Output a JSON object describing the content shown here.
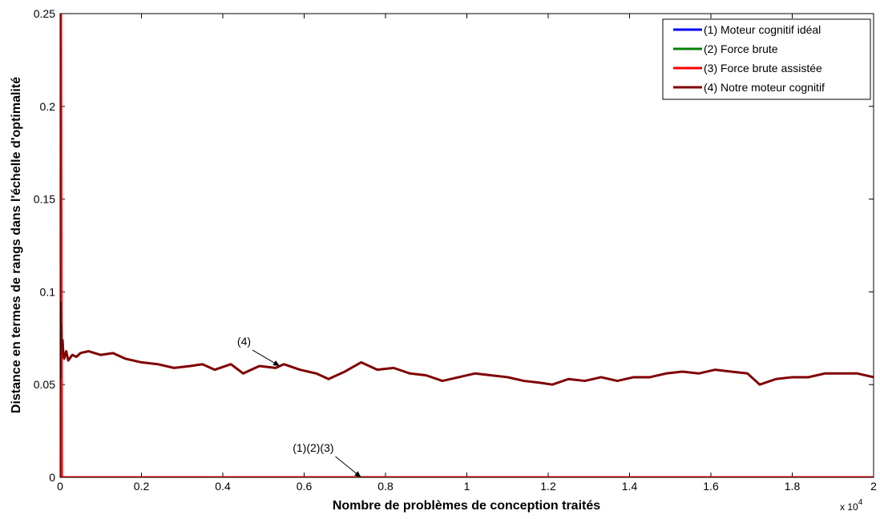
{
  "chart_data": {
    "type": "line",
    "title": "",
    "xlabel": "Nombre de problèmes de conception traités",
    "ylabel": "Distance en termes de rangs dans l'échelle d'optimalité",
    "x_multiplier_label": "x 10",
    "x_multiplier_exponent": "4",
    "xlim": [
      0,
      20000
    ],
    "ylim": [
      0,
      0.25
    ],
    "grid": false,
    "legend_position": "top-right",
    "x_ticks": [
      0,
      2000,
      4000,
      6000,
      8000,
      10000,
      12000,
      14000,
      16000,
      18000,
      20000
    ],
    "x_tick_labels": [
      "0",
      "0.2",
      "0.4",
      "0.6",
      "0.8",
      "1",
      "1.2",
      "1.4",
      "1.6",
      "1.8",
      "2"
    ],
    "y_ticks": [
      0,
      0.05,
      0.1,
      0.15,
      0.2,
      0.25
    ],
    "y_tick_labels": [
      "0",
      "0.05",
      "0.1",
      "0.15",
      "0.2",
      "0.25"
    ],
    "series": [
      {
        "name": "(1) Moteur cognitif idéal",
        "color": "#0000ff",
        "x": [
          0,
          20000
        ],
        "y": [
          0,
          0
        ]
      },
      {
        "name": "(2) Force brute",
        "color": "#008000",
        "x": [
          0,
          20000
        ],
        "y": [
          0,
          0
        ]
      },
      {
        "name": "(3) Force brute assistée",
        "color": "#ff0000",
        "x": [
          0,
          20,
          40,
          20000
        ],
        "y": [
          0.25,
          0.25,
          0,
          0
        ]
      },
      {
        "name": "(4) Notre moteur cognitif",
        "color": "#800000",
        "x": [
          0,
          10,
          20,
          30,
          40,
          60,
          80,
          100,
          150,
          200,
          300,
          400,
          500,
          700,
          1000,
          1300,
          1600,
          2000,
          2400,
          2800,
          3200,
          3500,
          3800,
          4200,
          4500,
          4900,
          5300,
          5500,
          5900,
          6300,
          6600,
          7000,
          7400,
          7800,
          8200,
          8600,
          9000,
          9400,
          9800,
          10200,
          10600,
          11000,
          11400,
          11800,
          12100,
          12500,
          12900,
          13300,
          13700,
          14100,
          14500,
          14900,
          15300,
          15700,
          16100,
          16500,
          16900,
          17200,
          17600,
          18000,
          18400,
          18800,
          19200,
          19600,
          20000
        ],
        "y": [
          0.053,
          0.094,
          0.078,
          0.082,
          0.071,
          0.074,
          0.066,
          0.064,
          0.068,
          0.063,
          0.066,
          0.065,
          0.067,
          0.068,
          0.066,
          0.067,
          0.064,
          0.062,
          0.061,
          0.059,
          0.06,
          0.061,
          0.058,
          0.061,
          0.056,
          0.06,
          0.059,
          0.061,
          0.058,
          0.056,
          0.053,
          0.057,
          0.062,
          0.058,
          0.059,
          0.056,
          0.055,
          0.052,
          0.054,
          0.056,
          0.055,
          0.054,
          0.052,
          0.051,
          0.05,
          0.053,
          0.052,
          0.054,
          0.052,
          0.054,
          0.054,
          0.056,
          0.057,
          0.056,
          0.058,
          0.057,
          0.056,
          0.05,
          0.053,
          0.054,
          0.054,
          0.056,
          0.056,
          0.056,
          0.054
        ]
      }
    ],
    "annotations": [
      {
        "text": "(4)",
        "x": 5400,
        "y": 0.06
      },
      {
        "text": "(1)(2)(3)",
        "x": 7400,
        "y": 0
      }
    ]
  }
}
